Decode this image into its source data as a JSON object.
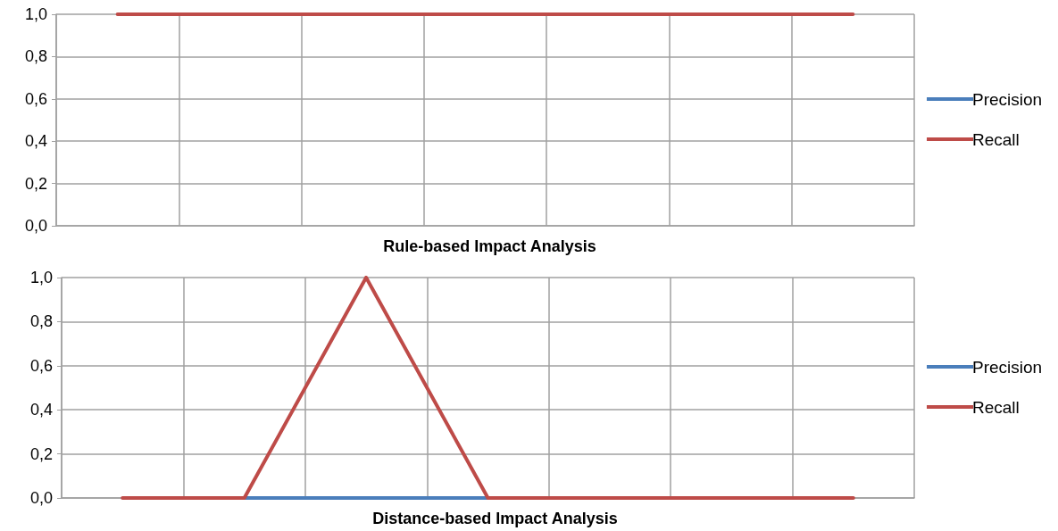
{
  "chart_data": [
    {
      "type": "line",
      "title": "Rule-based Impact Analysis",
      "categories": [
        null,
        null,
        null,
        null,
        null,
        null,
        null
      ],
      "series": [
        {
          "name": "Precision",
          "color": "#4a7ebb",
          "values": [
            null,
            null,
            null,
            null,
            null,
            null,
            null
          ]
        },
        {
          "name": "Recall",
          "color": "#be4b48",
          "values": [
            1,
            1,
            1,
            1,
            1,
            1,
            1
          ]
        }
      ],
      "ylim": [
        0,
        1
      ],
      "yticks": [
        {
          "value": 0,
          "label": "0,0"
        },
        {
          "value": 0.2,
          "label": "0,2"
        },
        {
          "value": 0.4,
          "label": "0,4"
        },
        {
          "value": 0.6,
          "label": "0,6"
        },
        {
          "value": 0.8,
          "label": "0,8"
        },
        {
          "value": 1,
          "label": "1,0"
        }
      ],
      "grid": true,
      "legend": "right",
      "marker": "none",
      "tick_labels": "y"
    },
    {
      "type": "line",
      "title": "Distance-based Impact Analysis",
      "categories": [
        null,
        null,
        null,
        null,
        null,
        null,
        null
      ],
      "series": [
        {
          "name": "Precision",
          "color": "#4a7ebb",
          "values": [
            null,
            0,
            0,
            0,
            null,
            null,
            null
          ]
        },
        {
          "name": "Recall",
          "color": "#be4b48",
          "values": [
            0,
            0,
            1,
            0,
            0,
            0,
            0
          ]
        }
      ],
      "ylim": [
        0,
        1
      ],
      "yticks": [
        {
          "value": 0,
          "label": "0,0"
        },
        {
          "value": 0.2,
          "label": "0,2"
        },
        {
          "value": 0.4,
          "label": "0,4"
        },
        {
          "value": 0.6,
          "label": "0,6"
        },
        {
          "value": 0.8,
          "label": "0,8"
        },
        {
          "value": 1,
          "label": "1,0"
        }
      ],
      "grid": true,
      "legend": "right",
      "marker": "none",
      "tick_labels": "y"
    }
  ]
}
